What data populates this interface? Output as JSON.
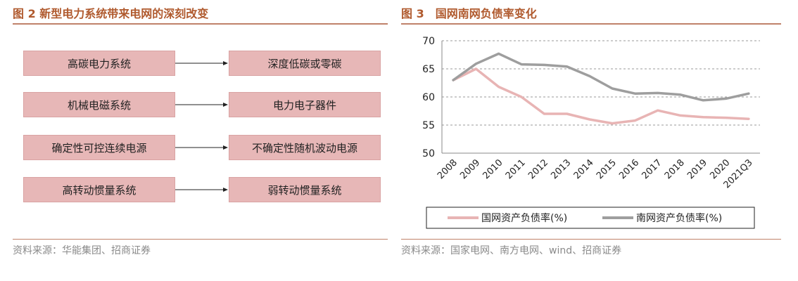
{
  "left_panel": {
    "title": "图 2 新型电力系统带来电网的深刻改变",
    "source": "资料来源：华能集团、招商证券",
    "rows": [
      {
        "from": "高碳电力系统",
        "to": "深度低碳或零碳"
      },
      {
        "from": "机械电磁系统",
        "to": "电力电子器件"
      },
      {
        "from": "确定性可控连续电源",
        "to": "不确定性随机波动电源"
      },
      {
        "from": "高转动惯量系统",
        "to": "弱转动惯量系统"
      }
    ]
  },
  "right_panel": {
    "title": "图 3　国网南网负债率变化",
    "source": "资料来源：国家电网、南方电网、wind、招商证券"
  },
  "colors": {
    "title": "#b05a2e",
    "box_fill": "#e7b7b7",
    "guowang_line": "#e8b4b4",
    "nanwang_line": "#9e9e9e"
  },
  "chart_data": {
    "type": "line",
    "categories": [
      "2008",
      "2009",
      "2010",
      "2011",
      "2012",
      "2013",
      "2014",
      "2015",
      "2016",
      "2017",
      "2018",
      "2019",
      "2020",
      "2021Q3"
    ],
    "series": [
      {
        "name": "国网资产负债率(%)",
        "values": [
          63.0,
          65.0,
          61.8,
          60.0,
          57.0,
          57.0,
          56.0,
          55.3,
          55.8,
          57.6,
          56.7,
          56.4,
          56.3,
          56.1
        ]
      },
      {
        "name": "南网资产负债率(%)",
        "values": [
          63.0,
          65.9,
          67.7,
          65.8,
          65.7,
          65.4,
          63.7,
          61.5,
          60.6,
          60.7,
          60.4,
          59.4,
          59.7,
          60.6
        ]
      }
    ],
    "y_ticks": [
      "70",
      "65",
      "60",
      "55",
      "50"
    ],
    "ylim": [
      50,
      70
    ],
    "grid": true,
    "legend_position": "bottom"
  }
}
